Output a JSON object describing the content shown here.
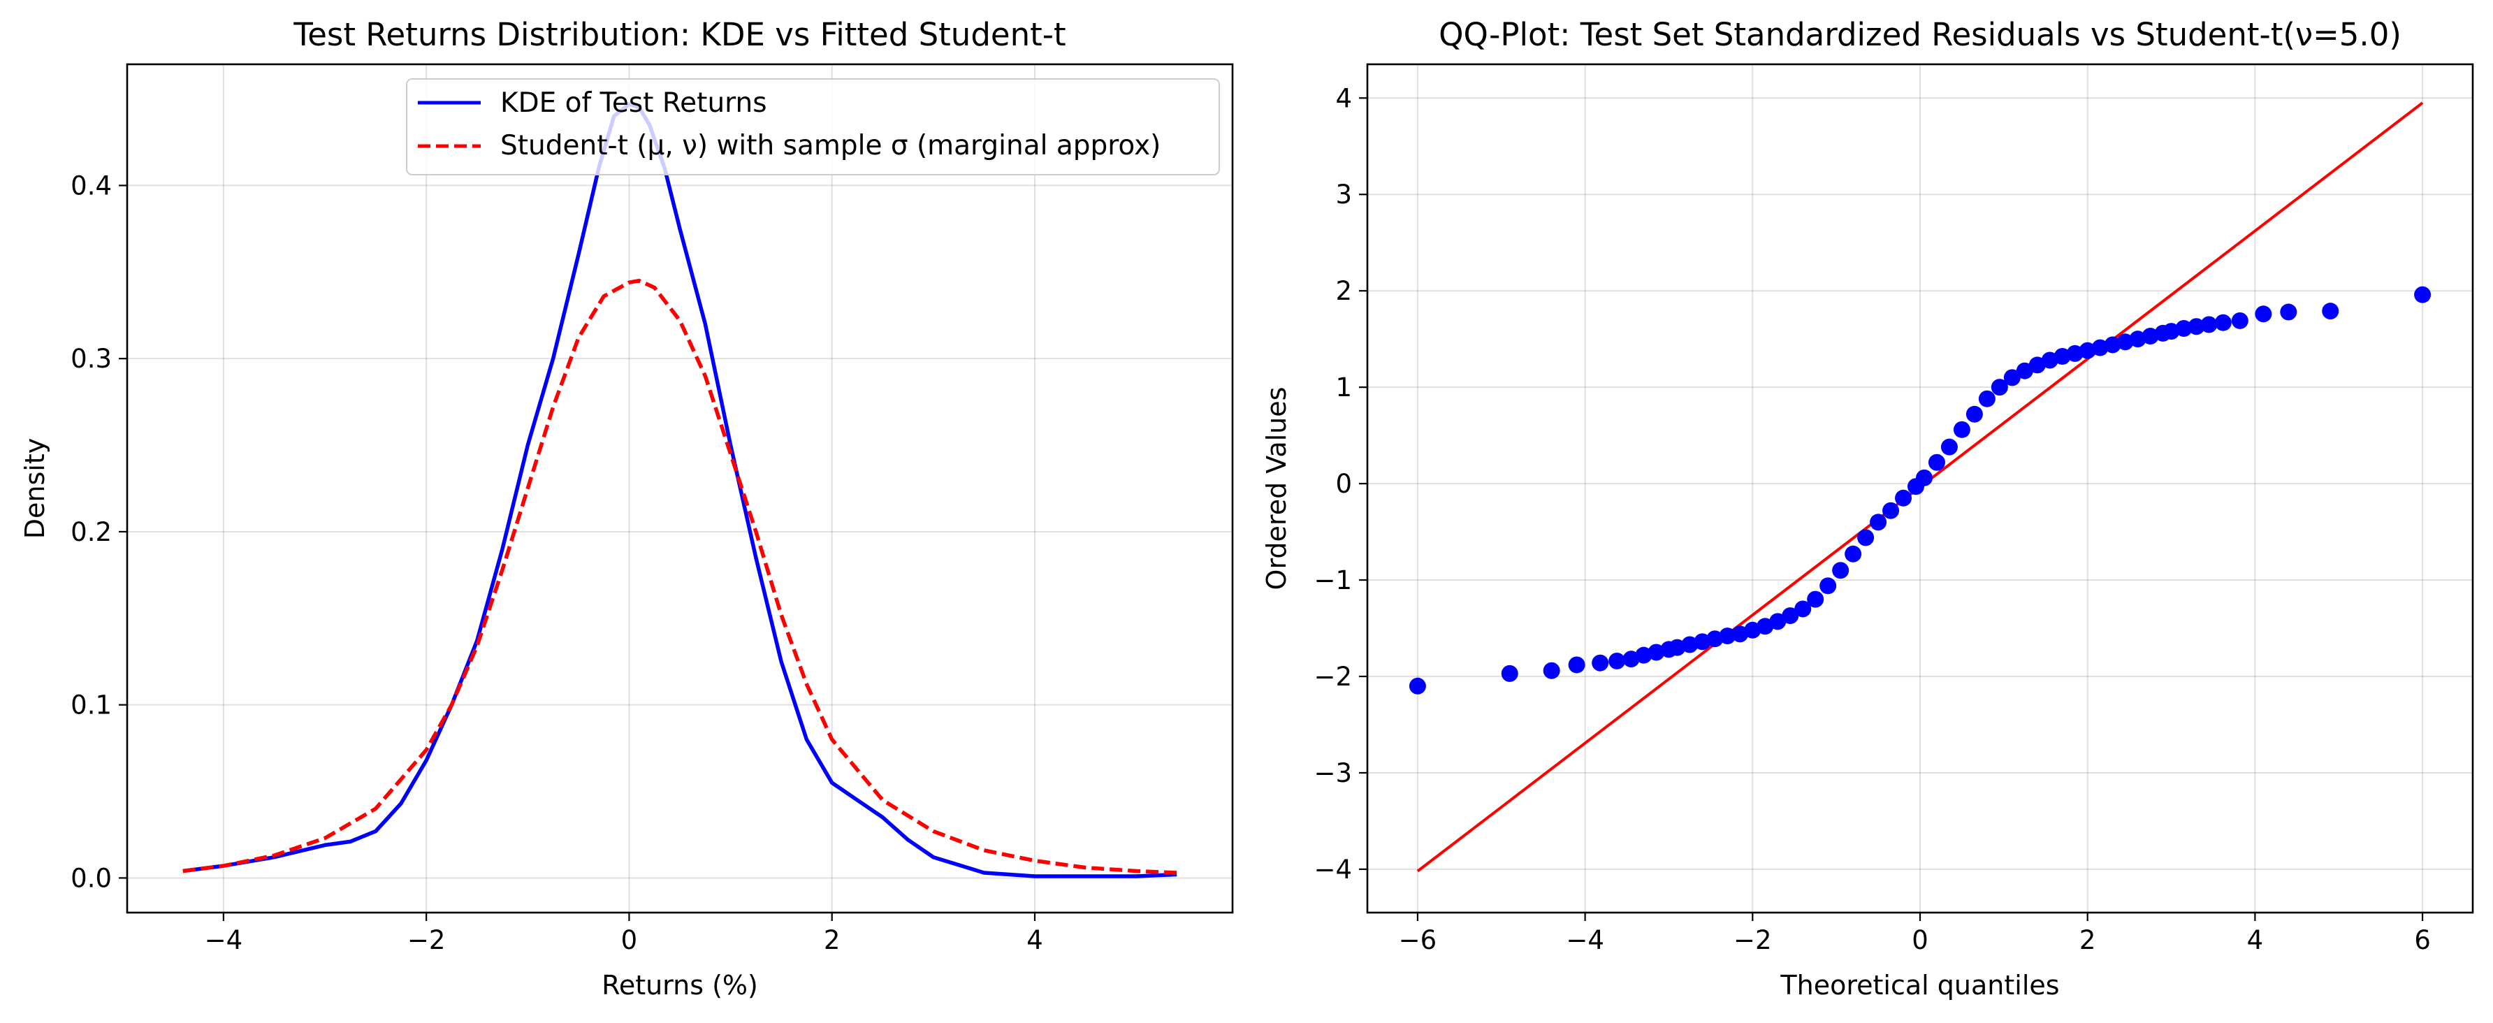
{
  "chart_data": [
    {
      "type": "line",
      "title": "Test Returns Distribution: KDE vs Fitted Student-t",
      "xlabel": "Returns (%)",
      "ylabel": "Density",
      "xlim": [
        -4.95,
        5.95
      ],
      "ylim": [
        -0.02,
        0.47
      ],
      "xticks": [
        -4,
        -2,
        0,
        2,
        4
      ],
      "xtick_labels": [
        "−4",
        "−2",
        "0",
        "2",
        "4"
      ],
      "yticks": [
        0.0,
        0.1,
        0.2,
        0.3,
        0.4
      ],
      "ytick_labels": [
        "0.0",
        "0.1",
        "0.2",
        "0.3",
        "0.4"
      ],
      "grid": true,
      "legend_position": "upper-right",
      "series": [
        {
          "name": "KDE of Test Returns",
          "color": "#0000ff",
          "style": "solid",
          "x": [
            -4.4,
            -4.0,
            -3.5,
            -3.0,
            -2.75,
            -2.5,
            -2.25,
            -2.0,
            -1.75,
            -1.5,
            -1.25,
            -1.0,
            -0.75,
            -0.5,
            -0.3,
            -0.15,
            0.0,
            0.1,
            0.2,
            0.35,
            0.5,
            0.75,
            1.0,
            1.25,
            1.5,
            1.75,
            2.0,
            2.25,
            2.5,
            2.75,
            3.0,
            3.5,
            4.0,
            4.5,
            5.0,
            5.4
          ],
          "y": [
            0.004,
            0.007,
            0.012,
            0.019,
            0.021,
            0.027,
            0.043,
            0.068,
            0.1,
            0.137,
            0.19,
            0.25,
            0.3,
            0.36,
            0.41,
            0.44,
            0.447,
            0.445,
            0.435,
            0.41,
            0.375,
            0.32,
            0.25,
            0.185,
            0.125,
            0.08,
            0.055,
            0.045,
            0.035,
            0.022,
            0.012,
            0.003,
            0.001,
            0.001,
            0.001,
            0.002
          ]
        },
        {
          "name": "Student-t (μ, ν) with sample σ (marginal approx)",
          "color": "#ff0000",
          "style": "dashed",
          "x": [
            -4.4,
            -4.0,
            -3.5,
            -3.0,
            -2.5,
            -2.0,
            -1.75,
            -1.5,
            -1.25,
            -1.0,
            -0.75,
            -0.5,
            -0.25,
            0.0,
            0.1,
            0.25,
            0.5,
            0.75,
            1.0,
            1.25,
            1.5,
            1.75,
            2.0,
            2.5,
            3.0,
            3.5,
            4.0,
            4.5,
            5.0,
            5.4
          ],
          "y": [
            0.004,
            0.007,
            0.013,
            0.023,
            0.04,
            0.074,
            0.1,
            0.134,
            0.178,
            0.225,
            0.272,
            0.312,
            0.336,
            0.344,
            0.345,
            0.341,
            0.322,
            0.29,
            0.245,
            0.2,
            0.152,
            0.112,
            0.08,
            0.045,
            0.027,
            0.016,
            0.01,
            0.006,
            0.004,
            0.003
          ]
        }
      ]
    },
    {
      "type": "scatter",
      "title": "QQ-Plot: Test Set Standardized Residuals vs Student-t(ν=5.0)",
      "xlabel": "Theoretical quantiles",
      "ylabel": "Ordered Values",
      "xlim": [
        -6.6,
        6.6
      ],
      "ylim": [
        -4.45,
        4.35
      ],
      "xticks": [
        -6,
        -4,
        -2,
        0,
        2,
        4,
        6
      ],
      "xtick_labels": [
        "−6",
        "−4",
        "−2",
        "0",
        "2",
        "4",
        "6"
      ],
      "yticks": [
        -4,
        -3,
        -2,
        -1,
        0,
        1,
        2,
        3,
        4
      ],
      "ytick_labels": [
        "−4",
        "−3",
        "−2",
        "−1",
        "0",
        "1",
        "2",
        "3",
        "4"
      ],
      "grid": true,
      "series": [
        {
          "color": "#0000ff",
          "x": [
            -6.0,
            -4.9,
            -4.4,
            -4.1,
            -3.82,
            -3.62,
            -3.45,
            -3.3,
            -3.15,
            -3.0,
            -2.9,
            -2.75,
            -2.6,
            -2.45,
            -2.3,
            -2.15,
            -2.0,
            -1.85,
            -1.7,
            -1.55,
            -1.4,
            -1.25,
            -1.1,
            -0.95,
            -0.8,
            -0.65,
            -0.5,
            -0.35,
            -0.2,
            -0.05,
            0.05,
            0.2,
            0.35,
            0.5,
            0.65,
            0.8,
            0.95,
            1.1,
            1.25,
            1.4,
            1.55,
            1.7,
            1.85,
            2.0,
            2.15,
            2.3,
            2.45,
            2.6,
            2.75,
            2.9,
            3.0,
            3.15,
            3.3,
            3.45,
            3.62,
            3.82,
            4.1,
            4.4,
            4.9,
            6.0
          ],
          "y": [
            -2.1,
            -1.97,
            -1.94,
            -1.88,
            -1.86,
            -1.84,
            -1.82,
            -1.78,
            -1.75,
            -1.72,
            -1.7,
            -1.67,
            -1.64,
            -1.61,
            -1.58,
            -1.56,
            -1.52,
            -1.48,
            -1.43,
            -1.37,
            -1.3,
            -1.2,
            -1.06,
            -0.9,
            -0.73,
            -0.56,
            -0.4,
            -0.28,
            -0.15,
            -0.03,
            0.06,
            0.22,
            0.38,
            0.56,
            0.72,
            0.88,
            1.0,
            1.1,
            1.17,
            1.23,
            1.28,
            1.32,
            1.35,
            1.38,
            1.41,
            1.44,
            1.47,
            1.5,
            1.53,
            1.56,
            1.58,
            1.61,
            1.63,
            1.65,
            1.67,
            1.69,
            1.76,
            1.78,
            1.79,
            1.96
          ]
        }
      ],
      "reference_line": {
        "color": "#ff0000",
        "x": [
          -6.0,
          6.0
        ],
        "y": [
          -4.02,
          3.95
        ]
      }
    }
  ]
}
